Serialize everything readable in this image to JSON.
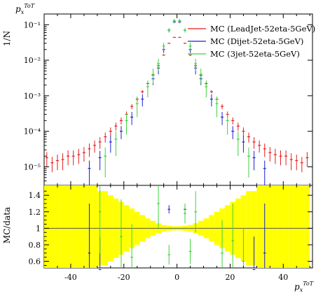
{
  "chart_data": [
    {
      "type": "scatter",
      "panel": "main",
      "title": "",
      "title_corner": "p",
      "title_corner_sub": "x",
      "title_corner_sup": "ToT",
      "ylabel": "1/N",
      "yscale": "log",
      "ylim": [
        3e-06,
        0.2
      ],
      "xlim": [
        -50,
        51
      ],
      "x_ticks": [
        -40,
        -20,
        0,
        20,
        40
      ],
      "y_ticks": [
        {
          "value": 0.1,
          "label": "10⁻¹"
        },
        {
          "value": 0.01,
          "label": "10⁻²"
        },
        {
          "value": 0.001,
          "label": "10⁻³"
        },
        {
          "value": 0.0001,
          "label": "10⁻⁴"
        },
        {
          "value": 1e-05,
          "label": "10⁻⁵"
        }
      ],
      "legend_position": "top-right",
      "series": [
        {
          "name": "MC (LeadJet-52eta-5GeV)",
          "color": "#e81c1c",
          "points": [
            [
              -49,
              1.8e-05,
              8e-06
            ],
            [
              -47,
              1.3e-05,
              6e-06
            ],
            [
              -45,
              1.5e-05,
              7e-06
            ],
            [
              -43,
              1.6e-05,
              8e-06
            ],
            [
              -41,
              2e-05,
              9e-06
            ],
            [
              -39,
              2e-05,
              9e-06
            ],
            [
              -37,
              2.2e-05,
              1e-05
            ],
            [
              -35,
              2.5e-05,
              1.1e-05
            ],
            [
              -33,
              3.2e-05,
              1.3e-05
            ],
            [
              -31,
              4e-05,
              1.5e-05
            ],
            [
              -29,
              5e-05,
              1.8e-05
            ],
            [
              -27,
              7e-05,
              2.2e-05
            ],
            [
              -25,
              0.0001,
              2.8e-05
            ],
            [
              -23,
              0.00014,
              3.5e-05
            ],
            [
              -21,
              0.0002,
              4.5e-05
            ],
            [
              -19,
              0.0003,
              6e-05
            ],
            [
              -17,
              0.0005,
              8e-05
            ],
            [
              -15,
              0.0008,
              0.0001
            ],
            [
              -13,
              0.0013,
              0.00013
            ],
            [
              -11,
              0.0022,
              0.0002
            ],
            [
              -9,
              0.0038,
              0.0003
            ],
            [
              -7,
              0.007,
              0.0004
            ],
            [
              -5,
              0.014,
              0.0006
            ],
            [
              -3,
              0.03,
              0.0009
            ],
            [
              -1,
              0.044,
              0.0011
            ],
            [
              1,
              0.044,
              0.0011
            ],
            [
              3,
              0.03,
              0.0009
            ],
            [
              5,
              0.014,
              0.0006
            ],
            [
              7,
              0.007,
              0.0004
            ],
            [
              9,
              0.0038,
              0.0003
            ],
            [
              11,
              0.0022,
              0.0002
            ],
            [
              13,
              0.0013,
              0.00013
            ],
            [
              15,
              0.0008,
              0.0001
            ],
            [
              17,
              0.0005,
              8e-05
            ],
            [
              19,
              0.0003,
              6e-05
            ],
            [
              21,
              0.0002,
              4.5e-05
            ],
            [
              23,
              0.00014,
              3.5e-05
            ],
            [
              25,
              0.0001,
              2.8e-05
            ],
            [
              27,
              7e-05,
              2.2e-05
            ],
            [
              29,
              5e-05,
              1.8e-05
            ],
            [
              31,
              4e-05,
              1.5e-05
            ],
            [
              33,
              3.2e-05,
              1.3e-05
            ],
            [
              35,
              2.5e-05,
              1.1e-05
            ],
            [
              37,
              2.2e-05,
              1e-05
            ],
            [
              39,
              2e-05,
              9e-06
            ],
            [
              41,
              2e-05,
              9e-06
            ],
            [
              43,
              1.6e-05,
              8e-06
            ],
            [
              45,
              1.5e-05,
              7e-06
            ],
            [
              47,
              1.3e-05,
              6e-06
            ],
            [
              49,
              1.8e-05,
              8e-06
            ]
          ]
        },
        {
          "name": "MC (Dijet-52eta-5GeV)",
          "color": "#1f1fd6",
          "points": [
            [
              -33,
              9e-06,
              6e-06
            ],
            [
              -29,
              1.8e-05,
              1e-05
            ],
            [
              -25,
              5e-05,
              2.5e-05
            ],
            [
              -21,
              0.0001,
              4e-05
            ],
            [
              -17,
              0.00025,
              0.0001
            ],
            [
              -13,
              0.0008,
              0.0003
            ],
            [
              -9,
              0.003,
              0.001
            ],
            [
              -7,
              0.006,
              0.002
            ],
            [
              -5,
              0.02,
              0.004
            ],
            [
              -3,
              0.07,
              0.008
            ],
            [
              -1,
              0.12,
              0.01
            ],
            [
              1,
              0.12,
              0.01
            ],
            [
              3,
              0.07,
              0.008
            ],
            [
              5,
              0.02,
              0.004
            ],
            [
              7,
              0.006,
              0.002
            ],
            [
              9,
              0.003,
              0.001
            ],
            [
              13,
              0.0008,
              0.0003
            ],
            [
              17,
              0.00025,
              0.0001
            ],
            [
              21,
              0.0001,
              4e-05
            ],
            [
              25,
              5e-05,
              2.5e-05
            ],
            [
              29,
              1.8e-05,
              1e-05
            ],
            [
              33,
              9e-06,
              6e-06
            ]
          ]
        },
        {
          "name": "MC (3jet-52eta-5GeV)",
          "color": "#3fd13f",
          "points": [
            [
              -27,
              2e-05,
              1.5e-05
            ],
            [
              -23,
              6e-05,
              4e-05
            ],
            [
              -19,
              0.0002,
              0.00012
            ],
            [
              -15,
              0.0006,
              0.00035
            ],
            [
              -11,
              0.0018,
              0.0009
            ],
            [
              -9,
              0.004,
              0.0018
            ],
            [
              -7,
              0.008,
              0.003
            ],
            [
              -5,
              0.025,
              0.006
            ],
            [
              -3,
              0.07,
              0.01
            ],
            [
              -1,
              0.13,
              0.015
            ],
            [
              1,
              0.13,
              0.015
            ],
            [
              3,
              0.07,
              0.01
            ],
            [
              5,
              0.025,
              0.006
            ],
            [
              7,
              0.008,
              0.003
            ],
            [
              9,
              0.004,
              0.0018
            ],
            [
              11,
              0.0018,
              0.0009
            ],
            [
              15,
              0.0006,
              0.00035
            ],
            [
              19,
              0.0002,
              0.00012
            ],
            [
              23,
              6e-05,
              4e-05
            ],
            [
              27,
              2e-05,
              1.5e-05
            ]
          ]
        }
      ]
    },
    {
      "type": "scatter",
      "panel": "ratio",
      "ylabel": "MC/data",
      "xlabel_main": "p",
      "xlabel_sub": "x",
      "xlabel_sup": "ToT",
      "ylim": [
        0.52,
        1.52
      ],
      "xlim": [
        -50,
        51
      ],
      "y_ticks": [
        0.6,
        0.8,
        1,
        1.2,
        1.4
      ],
      "x_ticks": [
        -40,
        -20,
        0,
        20,
        40
      ],
      "band_color": "#ffff00",
      "band_halfwidth": [
        [
          -49,
          0.55
        ],
        [
          -47,
          0.55
        ],
        [
          -45,
          0.55
        ],
        [
          -43,
          0.55
        ],
        [
          -41,
          0.55
        ],
        [
          -39,
          0.55
        ],
        [
          -37,
          0.55
        ],
        [
          -35,
          0.55
        ],
        [
          -33,
          0.55
        ],
        [
          -31,
          0.55
        ],
        [
          -29,
          0.45
        ],
        [
          -27,
          0.45
        ],
        [
          -25,
          0.4
        ],
        [
          -23,
          0.36
        ],
        [
          -21,
          0.32
        ],
        [
          -19,
          0.28
        ],
        [
          -17,
          0.24
        ],
        [
          -15,
          0.2
        ],
        [
          -13,
          0.16
        ],
        [
          -11,
          0.12
        ],
        [
          -9,
          0.09
        ],
        [
          -7,
          0.06
        ],
        [
          -5,
          0.04
        ],
        [
          -3,
          0.03
        ],
        [
          -1,
          0.025
        ],
        [
          1,
          0.025
        ],
        [
          3,
          0.03
        ],
        [
          5,
          0.04
        ],
        [
          7,
          0.06
        ],
        [
          9,
          0.09
        ],
        [
          11,
          0.12
        ],
        [
          13,
          0.16
        ],
        [
          15,
          0.2
        ],
        [
          17,
          0.24
        ],
        [
          19,
          0.28
        ],
        [
          21,
          0.32
        ],
        [
          23,
          0.36
        ],
        [
          25,
          0.4
        ],
        [
          27,
          0.45
        ],
        [
          29,
          0.45
        ],
        [
          31,
          0.55
        ],
        [
          33,
          0.55
        ],
        [
          35,
          0.55
        ],
        [
          37,
          0.55
        ],
        [
          39,
          0.55
        ],
        [
          41,
          0.55
        ],
        [
          43,
          0.55
        ],
        [
          45,
          0.55
        ],
        [
          47,
          0.55
        ],
        [
          49,
          0.55
        ]
      ],
      "series": [
        {
          "name": "MC (Dijet-52eta-5GeV)",
          "color": "#1f1fd6",
          "points": [
            [
              -33,
              0.7,
              0.6
            ],
            [
              -29,
              0.5,
              0.4
            ],
            [
              -3,
              1.23,
              0.05
            ],
            [
              3,
              1.23,
              0.05
            ],
            [
              29,
              0.5,
              0.4
            ],
            [
              33,
              0.7,
              0.6
            ]
          ]
        },
        {
          "name": "MC (3jet-52eta-5GeV)",
          "color": "#3fd13f",
          "points": [
            [
              -29,
              1.2,
              0.5
            ],
            [
              -21,
              0.9,
              0.45
            ],
            [
              -17,
              0.65,
              0.4
            ],
            [
              -7,
              1.3,
              0.3
            ],
            [
              -3,
              0.68,
              0.12
            ],
            [
              3,
              1.18,
              0.12
            ],
            [
              5,
              0.72,
              0.15
            ],
            [
              7,
              1.2,
              0.25
            ],
            [
              17,
              0.7,
              0.4
            ],
            [
              21,
              0.85,
              0.45
            ],
            [
              25,
              0.6,
              0.4
            ]
          ]
        }
      ]
    }
  ]
}
